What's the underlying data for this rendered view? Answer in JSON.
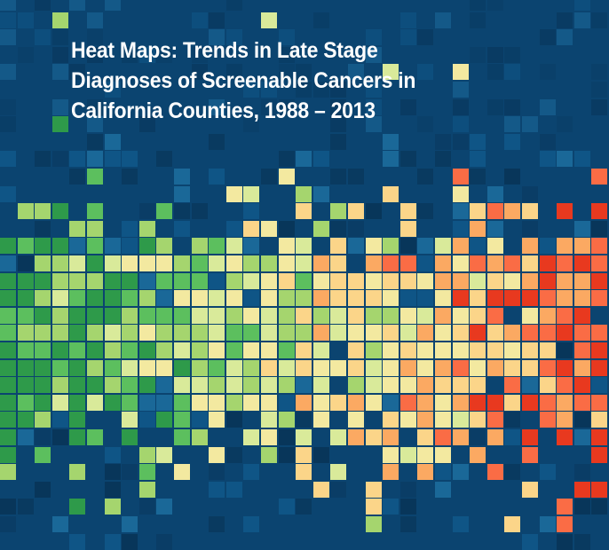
{
  "title": {
    "lines": [
      "Heat Maps: Trends in Late Stage",
      "Diagnoses of Screenable Cancers in",
      "California Counties, 1988 – 2013"
    ]
  },
  "colors": {
    "background": "#0b4470",
    "palette": [
      "#2e9a4a",
      "#5cbf5e",
      "#a5d56e",
      "#d9ea9a",
      "#f3e9a0",
      "#fbd589",
      "#fba962",
      "#fa6c45",
      "#e8391f"
    ],
    "dark_blues": [
      "#093a60",
      "#0a3d66",
      "#0f5586",
      "#1a6898",
      "#08365a"
    ]
  }
}
